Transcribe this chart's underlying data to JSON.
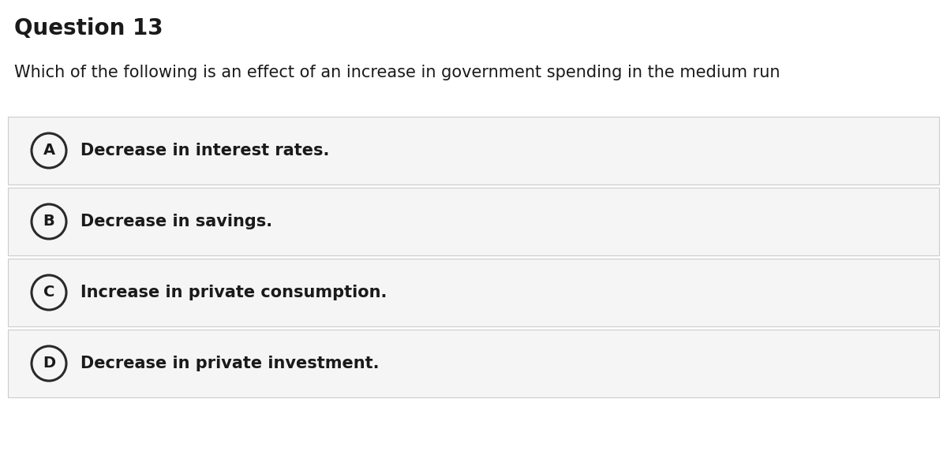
{
  "title": "Question 13",
  "question": "Which of the following is an effect of an increase in government spending in the medium run",
  "options": [
    {
      "label": "A",
      "text": "Decrease in interest rates."
    },
    {
      "label": "B",
      "text": "Decrease in savings."
    },
    {
      "label": "C",
      "text": "Increase in private consumption."
    },
    {
      "label": "D",
      "text": "Decrease in private investment."
    }
  ],
  "bg_color": "#ffffff",
  "option_bg_color": "#f5f5f5",
  "option_border_color": "#cccccc",
  "title_fontsize": 20,
  "question_fontsize": 15,
  "option_fontsize": 15,
  "text_color": "#1a1a1a",
  "circle_edge_color": "#2a2a2a",
  "circle_face_color": "#f5f5f5"
}
